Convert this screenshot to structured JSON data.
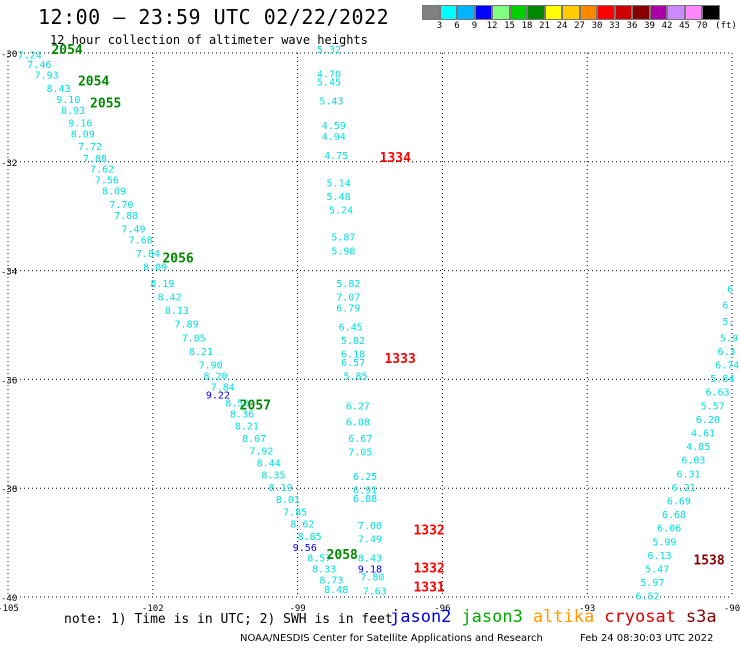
{
  "title": "12:00 — 23:59 UTC 02/22/2022",
  "subtitle": "12 hour collection of altimeter wave heights",
  "legend": {
    "unit": "(ft)",
    "colors": [
      "#808080",
      "#00ffff",
      "#00b4ff",
      "#0000ff",
      "#80ff80",
      "#00d000",
      "#008800",
      "#ffff00",
      "#ffcc00",
      "#ff8800",
      "#ff0000",
      "#cc0000",
      "#880000",
      "#aa00aa",
      "#cc88ff",
      "#ff88ff",
      "#000000"
    ],
    "labels": [
      "3",
      "6",
      "9",
      "12",
      "15",
      "18",
      "21",
      "24",
      "27",
      "30",
      "33",
      "36",
      "39",
      "42",
      "45",
      "70"
    ]
  },
  "axes": {
    "lat_ticks": [
      "-30",
      "-32",
      "-34",
      "-36",
      "-38",
      "-40"
    ],
    "lon_ticks": [
      "-105",
      "-102",
      "-99",
      "-96",
      "-93",
      "-90"
    ]
  },
  "tracks": {
    "t2054": {
      "pass_labels": [
        {
          "text": "2054",
          "color": "#008800",
          "lat": -30.02,
          "lon": -104.1
        },
        {
          "text": "2054",
          "color": "#008800",
          "lat": -30.6,
          "lon": -103.55
        },
        {
          "text": "2055",
          "color": "#008800",
          "lat": -31.0,
          "lon": -103.3
        },
        {
          "text": "2056",
          "color": "#008800",
          "lat": -33.85,
          "lon": -101.8
        },
        {
          "text": "2057",
          "color": "#008800",
          "lat": -36.55,
          "lon": -100.2
        },
        {
          "text": "2058",
          "color": "#008800",
          "lat": -39.3,
          "lon": -98.4
        }
      ],
      "values": [
        {
          "v": "7.24",
          "lat": -30.1,
          "lon": -104.8,
          "c": "#00e0e0"
        },
        {
          "v": "7.46",
          "lat": -30.28,
          "lon": -104.6,
          "c": "#00e0e0"
        },
        {
          "v": "7.93",
          "lat": -30.47,
          "lon": -104.45,
          "c": "#00e0e0"
        },
        {
          "v": "8.43",
          "lat": -30.72,
          "lon": -104.2,
          "c": "#00e0e0"
        },
        {
          "v": "9.10",
          "lat": -30.92,
          "lon": -104.0,
          "c": "#00e0e0"
        },
        {
          "v": "8.93",
          "lat": -31.12,
          "lon": -103.9,
          "c": "#00e0e0"
        },
        {
          "v": "9.16",
          "lat": -31.35,
          "lon": -103.75,
          "c": "#00e0e0"
        },
        {
          "v": "8.09",
          "lat": -31.55,
          "lon": -103.7,
          "c": "#00e0e0"
        },
        {
          "v": "7.72",
          "lat": -31.78,
          "lon": -103.55,
          "c": "#00e0e0"
        },
        {
          "v": "7.88",
          "lat": -32.0,
          "lon": -103.45,
          "c": "#00e0e0"
        },
        {
          "v": "7.62",
          "lat": -32.2,
          "lon": -103.3,
          "c": "#00e0e0"
        },
        {
          "v": "7.56",
          "lat": -32.4,
          "lon": -103.2,
          "c": "#00e0e0"
        },
        {
          "v": "8.09",
          "lat": -32.6,
          "lon": -103.05,
          "c": "#00e0e0"
        },
        {
          "v": "7.70",
          "lat": -32.85,
          "lon": -102.9,
          "c": "#00e0e0"
        },
        {
          "v": "7.88",
          "lat": -33.05,
          "lon": -102.8,
          "c": "#00e0e0"
        },
        {
          "v": "7.49",
          "lat": -33.3,
          "lon": -102.65,
          "c": "#00e0e0"
        },
        {
          "v": "7.68",
          "lat": -33.5,
          "lon": -102.5,
          "c": "#00e0e0"
        },
        {
          "v": "7.84",
          "lat": -33.75,
          "lon": -102.35,
          "c": "#00e0e0"
        },
        {
          "v": "8.09",
          "lat": -34.0,
          "lon": -102.2,
          "c": "#00e0e0"
        },
        {
          "v": "8.19",
          "lat": -34.3,
          "lon": -102.05,
          "c": "#00e0e0"
        },
        {
          "v": "8.42",
          "lat": -34.55,
          "lon": -101.9,
          "c": "#00e0e0"
        },
        {
          "v": "8.13",
          "lat": -34.8,
          "lon": -101.75,
          "c": "#00e0e0"
        },
        {
          "v": "7.89",
          "lat": -35.05,
          "lon": -101.55,
          "c": "#00e0e0"
        },
        {
          "v": "7.85",
          "lat": -35.3,
          "lon": -101.4,
          "c": "#00e0e0"
        },
        {
          "v": "8.21",
          "lat": -35.55,
          "lon": -101.25,
          "c": "#00e0e0"
        },
        {
          "v": "7.90",
          "lat": -35.8,
          "lon": -101.05,
          "c": "#00e0e0"
        },
        {
          "v": "8.20",
          "lat": -36.0,
          "lon": -100.95,
          "c": "#00e0e0"
        },
        {
          "v": "7.84",
          "lat": -36.2,
          "lon": -100.8,
          "c": "#00e0e0"
        },
        {
          "v": "9.22",
          "lat": -36.35,
          "lon": -100.9,
          "c": "#0000ff"
        },
        {
          "v": "8.50",
          "lat": -36.5,
          "lon": -100.5,
          "c": "#00e0e0"
        },
        {
          "v": "8.36",
          "lat": -36.7,
          "lon": -100.4,
          "c": "#00e0e0"
        },
        {
          "v": "8.21",
          "lat": -36.92,
          "lon": -100.3,
          "c": "#00e0e0"
        },
        {
          "v": "8.07",
          "lat": -37.15,
          "lon": -100.15,
          "c": "#00e0e0"
        },
        {
          "v": "7.92",
          "lat": -37.38,
          "lon": -100.0,
          "c": "#00e0e0"
        },
        {
          "v": "8.44",
          "lat": -37.6,
          "lon": -99.85,
          "c": "#00e0e0"
        },
        {
          "v": "8.35",
          "lat": -37.82,
          "lon": -99.75,
          "c": "#00e0e0"
        },
        {
          "v": "8.19",
          "lat": -38.05,
          "lon": -99.6,
          "c": "#00e0e0"
        },
        {
          "v": "8.01",
          "lat": -38.27,
          "lon": -99.45,
          "c": "#00e0e0"
        },
        {
          "v": "7.85",
          "lat": -38.5,
          "lon": -99.3,
          "c": "#00e0e0"
        },
        {
          "v": "8.62",
          "lat": -38.72,
          "lon": -99.15,
          "c": "#00e0e0"
        },
        {
          "v": "8.85",
          "lat": -38.95,
          "lon": -99.0,
          "c": "#00e0e0"
        },
        {
          "v": "9.56",
          "lat": -39.15,
          "lon": -99.1,
          "c": "#0000ff"
        },
        {
          "v": "8.57",
          "lat": -39.35,
          "lon": -98.8,
          "c": "#00e0e0"
        },
        {
          "v": "8.33",
          "lat": -39.55,
          "lon": -98.7,
          "c": "#00e0e0"
        },
        {
          "v": "8.73",
          "lat": -39.75,
          "lon": -98.55,
          "c": "#00e0e0"
        },
        {
          "v": "8.48",
          "lat": -39.93,
          "lon": -98.45,
          "c": "#00e0e0"
        }
      ]
    },
    "t1334": {
      "pass_labels": [
        {
          "text": "1334",
          "color": "#ff0000",
          "lat": -32.0,
          "lon": -97.3
        },
        {
          "text": "1333",
          "color": "#ff0000",
          "lat": -35.7,
          "lon": -97.2
        },
        {
          "text": "1332",
          "color": "#ff0000",
          "lat": -38.85,
          "lon": -96.6
        },
        {
          "text": "1332",
          "color": "#ff0000",
          "lat": -39.55,
          "lon": -96.6
        },
        {
          "text": "1331",
          "color": "#ff0000",
          "lat": -39.9,
          "lon": -96.6
        }
      ],
      "values": [
        {
          "v": "5.32",
          "lat": -30.0,
          "lon": -98.6,
          "c": "#00e0e0"
        },
        {
          "v": "4.70",
          "lat": -30.45,
          "lon": -98.6,
          "c": "#00e0e0"
        },
        {
          "v": "5.45",
          "lat": -30.6,
          "lon": -98.6,
          "c": "#00e0e0"
        },
        {
          "v": "5.43",
          "lat": -30.95,
          "lon": -98.55,
          "c": "#00e0e0"
        },
        {
          "v": "4.59",
          "lat": -31.4,
          "lon": -98.5,
          "c": "#00e0e0"
        },
        {
          "v": "4.94",
          "lat": -31.6,
          "lon": -98.5,
          "c": "#00e0e0"
        },
        {
          "v": "4.75",
          "lat": -31.95,
          "lon": -98.45,
          "c": "#00e0e0"
        },
        {
          "v": "5.14",
          "lat": -32.45,
          "lon": -98.4,
          "c": "#00e0e0"
        },
        {
          "v": "5.48",
          "lat": -32.7,
          "lon": -98.4,
          "c": "#00e0e0"
        },
        {
          "v": "5.24",
          "lat": -32.95,
          "lon": -98.35,
          "c": "#00e0e0"
        },
        {
          "v": "5.87",
          "lat": -33.45,
          "lon": -98.3,
          "c": "#00e0e0"
        },
        {
          "v": "5.98",
          "lat": -33.7,
          "lon": -98.3,
          "c": "#00e0e0"
        },
        {
          "v": "5.82",
          "lat": -34.3,
          "lon": -98.2,
          "c": "#00e0e0"
        },
        {
          "v": "7.07",
          "lat": -34.55,
          "lon": -98.2,
          "c": "#00e0e0"
        },
        {
          "v": "6.79",
          "lat": -34.75,
          "lon": -98.2,
          "c": "#00e0e0"
        },
        {
          "v": "6.45",
          "lat": -35.1,
          "lon": -98.15,
          "c": "#00e0e0"
        },
        {
          "v": "5.82",
          "lat": -35.35,
          "lon": -98.1,
          "c": "#00e0e0"
        },
        {
          "v": "6.18",
          "lat": -35.6,
          "lon": -98.1,
          "c": "#00e0e0"
        },
        {
          "v": "6.57",
          "lat": -35.75,
          "lon": -98.1,
          "c": "#00e0e0"
        },
        {
          "v": "5.85",
          "lat": -36.0,
          "lon": -98.05,
          "c": "#00e0e0"
        },
        {
          "v": "6.27",
          "lat": -36.55,
          "lon": -98.0,
          "c": "#00e0e0"
        },
        {
          "v": "6.08",
          "lat": -36.85,
          "lon": -98.0,
          "c": "#00e0e0"
        },
        {
          "v": "6.67",
          "lat": -37.15,
          "lon": -97.95,
          "c": "#00e0e0"
        },
        {
          "v": "7.05",
          "lat": -37.4,
          "lon": -97.95,
          "c": "#00e0e0"
        },
        {
          "v": "6.25",
          "lat": -37.85,
          "lon": -97.85,
          "c": "#00e0e0"
        },
        {
          "v": "6.91",
          "lat": -38.1,
          "lon": -97.85,
          "c": "#00e0e0"
        },
        {
          "v": "6.88",
          "lat": -38.25,
          "lon": -97.85,
          "c": "#00e0e0"
        },
        {
          "v": "7.00",
          "lat": -38.75,
          "lon": -97.75,
          "c": "#00e0e0"
        },
        {
          "v": "7.49",
          "lat": -39.0,
          "lon": -97.75,
          "c": "#00e0e0"
        },
        {
          "v": "8.43",
          "lat": -39.35,
          "lon": -97.75,
          "c": "#00e0e0"
        },
        {
          "v": "9.18",
          "lat": -39.55,
          "lon": -97.75,
          "c": "#0000ff"
        },
        {
          "v": "7.80",
          "lat": -39.7,
          "lon": -97.7,
          "c": "#00e0e0"
        },
        {
          "v": "7.63",
          "lat": -39.95,
          "lon": -97.65,
          "c": "#00e0e0"
        }
      ]
    },
    "t1538": {
      "pass_labels": [
        {
          "text": "1538",
          "color": "#880000",
          "lat": -39.4,
          "lon": -90.8
        }
      ],
      "values": [
        {
          "v": "6",
          "lat": -34.4,
          "lon": -90.1,
          "c": "#00e0e0"
        },
        {
          "v": "6",
          "lat": -34.7,
          "lon": -90.2,
          "c": "#00e0e0"
        },
        {
          "v": "5.",
          "lat": -35.0,
          "lon": -90.2,
          "c": "#00e0e0"
        },
        {
          "v": "5.9",
          "lat": -35.3,
          "lon": -90.25,
          "c": "#00e0e0"
        },
        {
          "v": "6.3",
          "lat": -35.55,
          "lon": -90.3,
          "c": "#00e0e0"
        },
        {
          "v": "6.74",
          "lat": -35.8,
          "lon": -90.35,
          "c": "#00e0e0"
        },
        {
          "v": "5.84",
          "lat": -36.05,
          "lon": -90.45,
          "c": "#00e0e0"
        },
        {
          "v": "6.63",
          "lat": -36.3,
          "lon": -90.55,
          "c": "#00e0e0"
        },
        {
          "v": "5.57",
          "lat": -36.55,
          "lon": -90.65,
          "c": "#00e0e0"
        },
        {
          "v": "6.20",
          "lat": -36.8,
          "lon": -90.75,
          "c": "#00e0e0"
        },
        {
          "v": "4.61",
          "lat": -37.05,
          "lon": -90.85,
          "c": "#00e0e0"
        },
        {
          "v": "4.85",
          "lat": -37.3,
          "lon": -90.95,
          "c": "#00e0e0"
        },
        {
          "v": "6.03",
          "lat": -37.55,
          "lon": -91.05,
          "c": "#00e0e0"
        },
        {
          "v": "6.31",
          "lat": -37.8,
          "lon": -91.15,
          "c": "#00e0e0"
        },
        {
          "v": "6.21",
          "lat": -38.05,
          "lon": -91.25,
          "c": "#00e0e0"
        },
        {
          "v": "6.69",
          "lat": -38.3,
          "lon": -91.35,
          "c": "#00e0e0"
        },
        {
          "v": "6.68",
          "lat": -38.55,
          "lon": -91.45,
          "c": "#00e0e0"
        },
        {
          "v": "6.06",
          "lat": -38.8,
          "lon": -91.55,
          "c": "#00e0e0"
        },
        {
          "v": "5.99",
          "lat": -39.05,
          "lon": -91.65,
          "c": "#00e0e0"
        },
        {
          "v": "6.13",
          "lat": -39.3,
          "lon": -91.75,
          "c": "#00e0e0"
        },
        {
          "v": "5.47",
          "lat": -39.55,
          "lon": -91.8,
          "c": "#00e0e0"
        },
        {
          "v": "5.97",
          "lat": -39.8,
          "lon": -91.9,
          "c": "#00e0e0"
        },
        {
          "v": "6.52",
          "lat": -40.05,
          "lon": -92.0,
          "c": "#00e0e0"
        }
      ]
    }
  },
  "note": "note: 1) Time is in UTC; 2) SWH is in feet",
  "satellites": [
    {
      "name": "jason2",
      "color": "#0000dd"
    },
    {
      "name": "jason3",
      "color": "#00aa00"
    },
    {
      "name": "altika",
      "color": "#ff9900"
    },
    {
      "name": "cryosat",
      "color": "#dd0000"
    },
    {
      "name": "s3a",
      "color": "#880000"
    }
  ],
  "credit": "NOAA/NESDIS Center for Satellite Applications and Research",
  "credit_time": "Feb 24 08:30:03 UTC 2022"
}
